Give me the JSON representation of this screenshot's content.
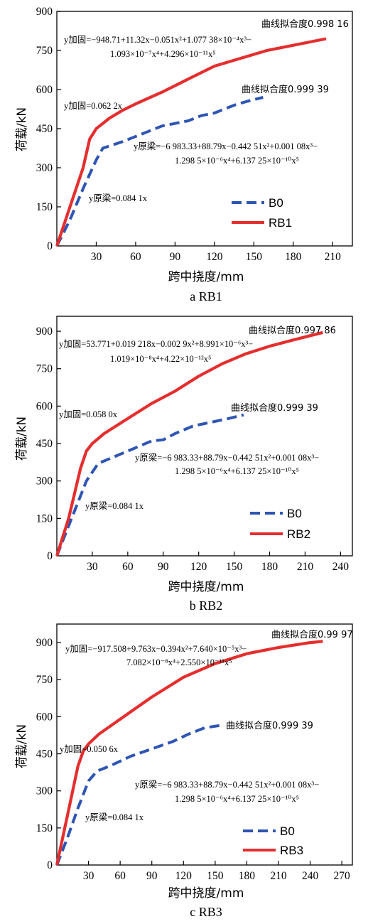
{
  "figure": {
    "ylabel": "荷载/kN",
    "xlabel": "跨中挠度/mm",
    "colors": {
      "original": "#2f55b4",
      "reinforced": "#e52e2e",
      "axis": "#000000"
    }
  },
  "chart_data": [
    {
      "type": "line",
      "caption": "a  RB1",
      "xlabel": "跨中挠度/mm",
      "ylabel": "荷载/kN",
      "xlim": [
        0,
        225
      ],
      "ylim": [
        0,
        900
      ],
      "xticks": [
        30,
        60,
        90,
        120,
        150,
        180,
        210
      ],
      "yticks": [
        0,
        150,
        300,
        450,
        600,
        750,
        900
      ],
      "grid": false,
      "legend": "center-right",
      "series": [
        {
          "name": "B0",
          "style": "dashed",
          "color": "#2f55b4",
          "x": [
            0,
            10,
            20,
            30,
            35,
            50,
            70,
            80,
            100,
            110,
            120,
            125,
            135,
            145,
            157
          ],
          "y": [
            0,
            100,
            220,
            330,
            375,
            400,
            440,
            460,
            480,
            500,
            510,
            520,
            540,
            555,
            570
          ]
        },
        {
          "name": "RB1",
          "style": "solid",
          "color": "#e52e2e",
          "x": [
            0,
            10,
            20,
            25,
            30,
            40,
            50,
            60,
            80,
            100,
            120,
            140,
            160,
            180,
            205
          ],
          "y": [
            0,
            150,
            300,
            410,
            450,
            490,
            520,
            545,
            590,
            640,
            690,
            720,
            750,
            770,
            795
          ]
        }
      ],
      "annotations": {
        "fit_rb": "曲线拟合度0.998 16",
        "fit_b0": "曲线拟合度0.999 39",
        "eq_rb_a": "y加固=−948.71+11.32x−0.051x²+1.077 38×10⁻⁴x³−",
        "eq_rb_b": "1.093×10⁻⁷x⁴+4.296×10⁻¹¹x⁵",
        "lin_rb": "y加固=0.062 2x",
        "eq_b0_a": "y原梁=−6 983.33+88.79x−0.442 51x²+0.001 08x³−",
        "eq_b0_b": "1.298 5×10⁻⁶x⁴+6.137 25×10⁻¹⁰x⁵",
        "lin_b0": "y原梁=0.084 1x"
      }
    },
    {
      "type": "line",
      "caption": "b  RB2",
      "xlabel": "跨中挠度/mm",
      "ylabel": "荷载/kN",
      "xlim": [
        0,
        250
      ],
      "ylim": [
        0,
        960
      ],
      "xticks": [
        30,
        60,
        90,
        120,
        150,
        180,
        210,
        240
      ],
      "yticks": [
        0,
        150,
        300,
        450,
        600,
        750,
        900
      ],
      "grid": false,
      "legend": "center-right",
      "series": [
        {
          "name": "B0",
          "style": "dashed",
          "color": "#2f55b4",
          "x": [
            0,
            10,
            20,
            25,
            35,
            50,
            65,
            80,
            90,
            100,
            115,
            130,
            145,
            158
          ],
          "y": [
            0,
            120,
            240,
            300,
            370,
            400,
            430,
            460,
            465,
            490,
            520,
            535,
            550,
            565
          ]
        },
        {
          "name": "RB2",
          "style": "solid",
          "color": "#e52e2e",
          "x": [
            0,
            10,
            20,
            25,
            30,
            40,
            60,
            80,
            100,
            120,
            140,
            160,
            180,
            200,
            225
          ],
          "y": [
            0,
            150,
            350,
            420,
            450,
            490,
            550,
            610,
            660,
            720,
            770,
            810,
            840,
            865,
            895
          ]
        }
      ],
      "annotations": {
        "fit_rb": "曲线拟合度0.997 86",
        "fit_b0": "曲线拟合度0.999 39",
        "eq_rb_a": "y加固=53.771+0.019 218x−0.002 9x²+8.991×10⁻⁶x³−",
        "eq_rb_b": "1.019×10⁻⁸x⁴+4.22×10⁻¹²x⁵",
        "lin_rb": "y加固=0.058 0x",
        "eq_b0_a": "y原梁=−6 983.33+88.79x−0.442 51x²+0.001 08x³−",
        "eq_b0_b": "1.298 5×10⁻⁶x⁴+6.137 25×10⁻¹⁰x⁵",
        "lin_b0": "y原梁=0.084 1x"
      }
    },
    {
      "type": "line",
      "caption": "c  RB3",
      "xlabel": "跨中挠度/mm",
      "ylabel": "荷载/kN",
      "xlim": [
        0,
        280
      ],
      "ylim": [
        0,
        975
      ],
      "xticks": [
        30,
        60,
        90,
        120,
        150,
        180,
        210,
        240,
        270
      ],
      "yticks": [
        0,
        150,
        300,
        450,
        600,
        750,
        900
      ],
      "grid": false,
      "legend": "bottom-center",
      "series": [
        {
          "name": "B0",
          "style": "dashed",
          "color": "#2f55b4",
          "x": [
            0,
            10,
            20,
            30,
            38,
            50,
            70,
            90,
            110,
            125,
            140,
            155
          ],
          "y": [
            0,
            110,
            230,
            340,
            380,
            400,
            440,
            470,
            500,
            530,
            555,
            565
          ]
        },
        {
          "name": "RB3",
          "style": "solid",
          "color": "#e52e2e",
          "x": [
            0,
            10,
            20,
            25,
            30,
            40,
            60,
            90,
            120,
            150,
            180,
            210,
            240,
            252
          ],
          "y": [
            0,
            200,
            400,
            460,
            490,
            530,
            590,
            680,
            760,
            815,
            855,
            880,
            900,
            905
          ]
        }
      ],
      "annotations": {
        "fit_rb": "曲线拟合度0.99 97",
        "fit_b0": "曲线拟合度0.999 39",
        "eq_rb_a": "y加固=−917.508+9.763x−0.394x²+7.640×10⁻⁵x³−",
        "eq_rb_b": "7.082×10⁻⁸x⁴+2.550×10⁻¹¹x⁵",
        "lin_rb": "y加固=0.050 6x",
        "eq_b0_a": "y原梁=−6 983.33+88.79x−0.442 51x²+0.001 08x³−",
        "eq_b0_b": "1.298 5×10⁻⁶x⁴+6.137 25×10⁻¹⁰x⁵",
        "lin_b0": "y原梁=0.084 1x"
      }
    }
  ]
}
